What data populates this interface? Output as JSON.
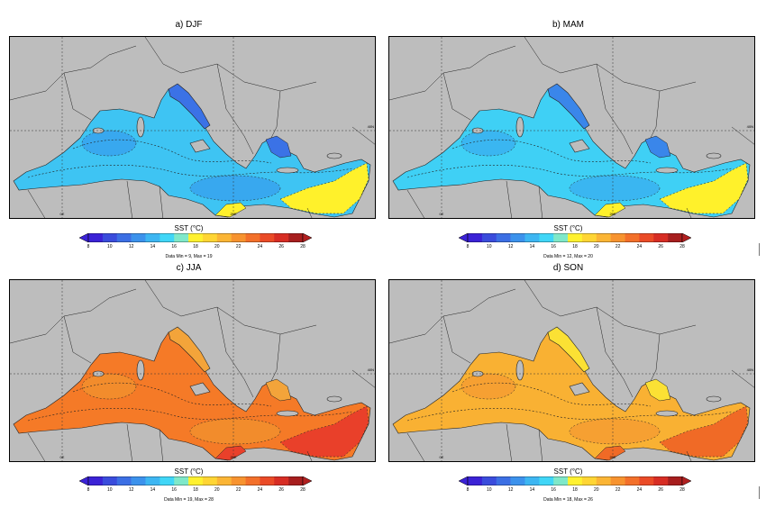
{
  "panels": [
    {
      "title": "a) DJF",
      "minmax": "Data Min = 9, Max = 19",
      "colors": {
        "base": "#3ec4f3",
        "deep": "#38a8ef",
        "north": "#3b72e6",
        "warm": "#fff12b"
      }
    },
    {
      "title": "b) MAM",
      "minmax": "Data Min = 12, Max = 20",
      "colors": {
        "base": "#3fd0f5",
        "deep": "#3ab6f1",
        "north": "#3a86ea",
        "warm": "#fff12b"
      }
    },
    {
      "title": "c) JJA",
      "minmax": "Data Min = 19, Max = 28",
      "colors": {
        "base": "#f57a27",
        "deep": "#f28c2c",
        "north": "#f3a43a",
        "warm": "#e9402a"
      }
    },
    {
      "title": "d) SON",
      "minmax": "Data Min = 18, Max = 26",
      "colors": {
        "base": "#f9b133",
        "deep": "#f6a032",
        "north": "#fbe134",
        "warm": "#f06a26"
      }
    }
  ],
  "colorbar": {
    "title": "SST (°C)",
    "ticks": [
      "8",
      "10",
      "12",
      "14",
      "16",
      "18",
      "20",
      "22",
      "24",
      "26",
      "28"
    ],
    "colors": [
      "#3b22d6",
      "#3a4cdc",
      "#3c6fe4",
      "#3c92ec",
      "#3db6f2",
      "#40d6f7",
      "#7fe8c9",
      "#fff130",
      "#ffd534",
      "#fbb535",
      "#f7932f",
      "#f3702a",
      "#ea4b27",
      "#d72d24",
      "#a71e1e"
    ],
    "low_color": "#3b22d6",
    "high_color": "#b12020"
  },
  "map": {
    "lat_labels": [
      "40N"
    ],
    "lon_labels": [
      "0E",
      "20E"
    ]
  }
}
